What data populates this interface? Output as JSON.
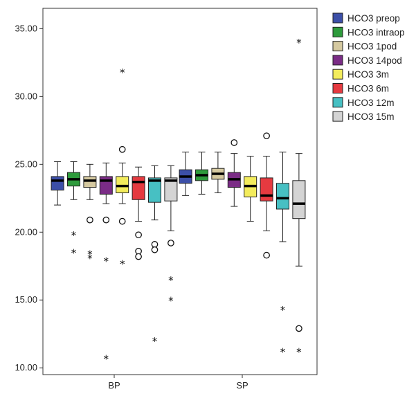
{
  "chart_data": {
    "type": "boxplot",
    "categories": [
      "BP",
      "SP"
    ],
    "ylim": [
      9.5,
      36.5
    ],
    "yticks": [
      10,
      15,
      20,
      25,
      30,
      35
    ],
    "ytick_labels": [
      "10.00",
      "15.00",
      "20.00",
      "25.00",
      "30.00",
      "35.00"
    ],
    "legend_position": "right",
    "series": [
      {
        "name": "HCO3 preop",
        "color": "#3c4fa8",
        "boxes": [
          {
            "q1": 23.1,
            "median": 23.8,
            "q3": 24.1,
            "whisker_low": 22.0,
            "whisker_high": 25.2,
            "outliers": [],
            "extremes": []
          },
          {
            "q1": 23.6,
            "median": 24.1,
            "q3": 24.6,
            "whisker_low": 22.7,
            "whisker_high": 25.9,
            "outliers": [],
            "extremes": []
          }
        ]
      },
      {
        "name": "HCO3 intraop",
        "color": "#2e9b3c",
        "boxes": [
          {
            "q1": 23.4,
            "median": 23.9,
            "q3": 24.4,
            "whisker_low": 22.4,
            "whisker_high": 25.2,
            "outliers": [],
            "extremes": [
              19.9,
              18.6
            ]
          },
          {
            "q1": 23.8,
            "median": 24.2,
            "q3": 24.6,
            "whisker_low": 22.8,
            "whisker_high": 25.9,
            "outliers": [],
            "extremes": []
          }
        ]
      },
      {
        "name": "HCO3 1pod",
        "color": "#d5c9a0",
        "boxes": [
          {
            "q1": 23.3,
            "median": 23.8,
            "q3": 24.1,
            "whisker_low": 22.4,
            "whisker_high": 25.0,
            "outliers": [
              20.9
            ],
            "extremes": [
              18.5,
              18.2
            ]
          },
          {
            "q1": 23.9,
            "median": 24.3,
            "q3": 24.7,
            "whisker_low": 22.9,
            "whisker_high": 25.9,
            "outliers": [],
            "extremes": []
          }
        ]
      },
      {
        "name": "HCO3 14pod",
        "color": "#7b2c86",
        "boxes": [
          {
            "q1": 22.8,
            "median": 23.8,
            "q3": 24.1,
            "whisker_low": 22.1,
            "whisker_high": 25.1,
            "outliers": [
              20.9
            ],
            "extremes": [
              18.0,
              10.8
            ]
          },
          {
            "q1": 23.3,
            "median": 23.9,
            "q3": 24.4,
            "whisker_low": 21.9,
            "whisker_high": 25.8,
            "outliers": [
              26.6
            ],
            "extremes": []
          }
        ]
      },
      {
        "name": "HCO3 3m",
        "color": "#f3ec5c",
        "boxes": [
          {
            "q1": 22.9,
            "median": 23.4,
            "q3": 24.1,
            "whisker_low": 22.1,
            "whisker_high": 25.1,
            "outliers": [
              26.1,
              20.8
            ],
            "extremes": [
              31.9,
              17.8
            ]
          },
          {
            "q1": 22.6,
            "median": 23.4,
            "q3": 24.1,
            "whisker_low": 20.8,
            "whisker_high": 25.6,
            "outliers": [],
            "extremes": []
          }
        ]
      },
      {
        "name": "HCO3 6m",
        "color": "#e53a40",
        "boxes": [
          {
            "q1": 22.4,
            "median": 23.7,
            "q3": 24.1,
            "whisker_low": 20.8,
            "whisker_high": 24.8,
            "outliers": [
              19.8,
              18.6,
              18.2
            ],
            "extremes": []
          },
          {
            "q1": 22.3,
            "median": 22.7,
            "q3": 24.0,
            "whisker_low": 20.1,
            "whisker_high": 25.6,
            "outliers": [
              27.1,
              18.3
            ],
            "extremes": []
          }
        ]
      },
      {
        "name": "HCO3 12m",
        "color": "#47c0c3",
        "boxes": [
          {
            "q1": 22.2,
            "median": 23.8,
            "q3": 24.0,
            "whisker_low": 20.9,
            "whisker_high": 24.9,
            "outliers": [
              19.1,
              18.7
            ],
            "extremes": [
              12.1
            ]
          },
          {
            "q1": 21.7,
            "median": 22.5,
            "q3": 23.6,
            "whisker_low": 19.3,
            "whisker_high": 25.9,
            "outliers": [],
            "extremes": [
              14.4,
              11.3
            ]
          }
        ]
      },
      {
        "name": "HCO3 15m",
        "color": "#d4d4d4",
        "boxes": [
          {
            "q1": 22.3,
            "median": 23.8,
            "q3": 24.0,
            "whisker_low": 20.1,
            "whisker_high": 24.9,
            "outliers": [
              19.2
            ],
            "extremes": [
              16.6,
              15.1
            ]
          },
          {
            "q1": 21.0,
            "median": 22.1,
            "q3": 23.8,
            "whisker_low": 17.5,
            "whisker_high": 25.8,
            "outliers": [
              12.9
            ],
            "extremes": [
              34.1,
              11.3
            ]
          }
        ]
      }
    ]
  }
}
